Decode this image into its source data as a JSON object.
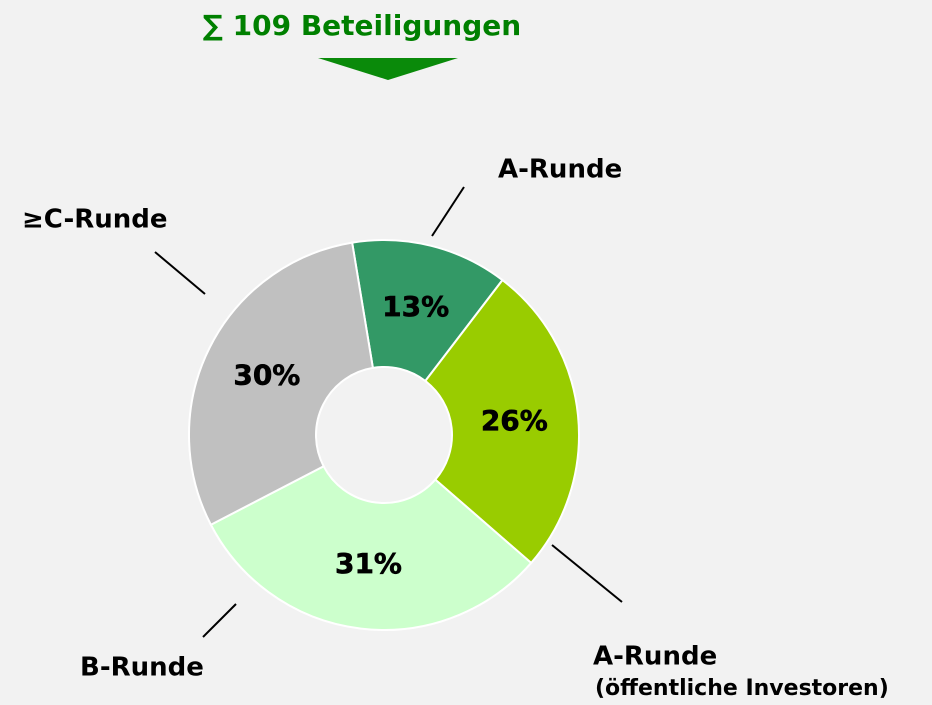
{
  "chart_data": {
    "type": "donut",
    "title": "∑ 109 Beteiligungen",
    "categories": [
      "A-Runde",
      "A-Runde",
      "B-Runde",
      "≥C-Runde"
    ],
    "annotations": [
      "(öffentliche Investoren)"
    ],
    "values": [
      13,
      26,
      31,
      30
    ],
    "value_labels": [
      "13%",
      "26%",
      "31%",
      "30%"
    ],
    "colors": [
      "#339966",
      "#99cc00",
      "#ccffcc",
      "#c0c0c0"
    ]
  }
}
